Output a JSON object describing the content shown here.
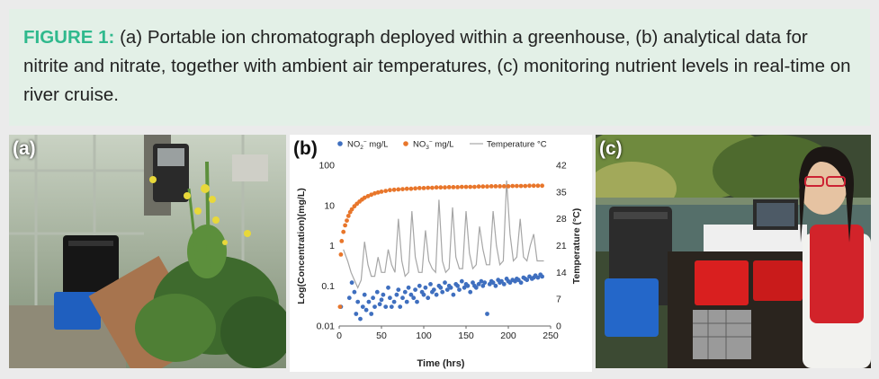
{
  "caption": {
    "label": "FIGURE 1:",
    "text": "(a) Portable ion chromatograph deployed within a greenhouse, (b) analytical data for nitrite and nitrate, together with ambient air temperatures, (c) monitoring nutrient levels in real-time on river cruise."
  },
  "panels": {
    "a_label": "(a)",
    "b_label": "(b)",
    "c_label": "(c)"
  },
  "colors": {
    "nitrite": "#3f6fbf",
    "nitrate": "#e8762b",
    "temperature": "#a6a6a6",
    "caption_label": "#2fb98d"
  },
  "chart_data": {
    "type": "scatter",
    "legend_placement": "top",
    "grid": false,
    "xlabel": "Time (hrs)",
    "ylabel": "Log(Concentration)(mg/L)",
    "y2label": "Temperature (°C)",
    "xlim": [
      0,
      250
    ],
    "ylim": [
      0.01,
      100
    ],
    "y_scale": "log",
    "y2lim": [
      0,
      42
    ],
    "x_ticks": [
      "0",
      "50",
      "100",
      "150",
      "200",
      "250"
    ],
    "y_ticks": [
      "0.01",
      "0.1",
      "1",
      "10",
      "100"
    ],
    "y2_ticks": [
      "0",
      "7",
      "14",
      "21",
      "28",
      "35",
      "42"
    ],
    "legend": {
      "nitrite_base": "NO",
      "nitrite_sub": "2",
      "nitrite_sup": "−",
      "nitrite_unit": " mg/L",
      "nitrate_base": "NO",
      "nitrate_sub": "3",
      "nitrate_sup": "−",
      "nitrate_unit": " mg/L",
      "temperature": "Temperature °C"
    },
    "series": [
      {
        "key": "nitrite",
        "kind": "scatter",
        "axis": "left",
        "x": [
          2,
          12,
          15,
          18,
          20,
          22,
          25,
          28,
          30,
          32,
          35,
          38,
          40,
          42,
          45,
          48,
          50,
          52,
          55,
          58,
          60,
          62,
          65,
          68,
          70,
          72,
          75,
          78,
          80,
          82,
          85,
          88,
          90,
          92,
          95,
          98,
          100,
          102,
          105,
          108,
          110,
          112,
          115,
          118,
          120,
          122,
          125,
          128,
          130,
          132,
          135,
          138,
          140,
          142,
          145,
          148,
          150,
          152,
          155,
          158,
          160,
          162,
          165,
          168,
          170,
          172,
          175,
          178,
          180,
          182,
          185,
          188,
          190,
          192,
          195,
          198,
          200,
          202,
          205,
          208,
          210,
          212,
          215,
          218,
          220,
          222,
          225,
          228,
          230,
          232,
          235,
          238,
          240
        ],
        "y": [
          0.03,
          0.05,
          0.12,
          0.07,
          0.02,
          0.04,
          0.015,
          0.03,
          0.06,
          0.025,
          0.04,
          0.02,
          0.05,
          0.03,
          0.07,
          0.035,
          0.045,
          0.06,
          0.03,
          0.09,
          0.05,
          0.03,
          0.04,
          0.06,
          0.08,
          0.03,
          0.05,
          0.07,
          0.04,
          0.09,
          0.06,
          0.05,
          0.08,
          0.04,
          0.1,
          0.07,
          0.06,
          0.09,
          0.05,
          0.11,
          0.07,
          0.08,
          0.06,
          0.1,
          0.09,
          0.07,
          0.12,
          0.08,
          0.1,
          0.09,
          0.06,
          0.11,
          0.1,
          0.08,
          0.13,
          0.09,
          0.11,
          0.1,
          0.07,
          0.12,
          0.1,
          0.09,
          0.11,
          0.13,
          0.1,
          0.12,
          0.02,
          0.11,
          0.13,
          0.12,
          0.1,
          0.14,
          0.12,
          0.13,
          0.11,
          0.15,
          0.13,
          0.12,
          0.14,
          0.13,
          0.15,
          0.14,
          0.12,
          0.16,
          0.15,
          0.14,
          0.17,
          0.15,
          0.16,
          0.18,
          0.16,
          0.19,
          0.17
        ]
      },
      {
        "key": "nitrate",
        "kind": "scatter",
        "axis": "left",
        "x": [
          1,
          2,
          3,
          5,
          7,
          9,
          11,
          13,
          15,
          18,
          21,
          24,
          27,
          30,
          34,
          38,
          42,
          46,
          50,
          55,
          60,
          65,
          70,
          75,
          80,
          85,
          90,
          95,
          100,
          105,
          110,
          115,
          120,
          125,
          130,
          135,
          140,
          145,
          150,
          155,
          160,
          165,
          170,
          175,
          180,
          185,
          190,
          195,
          200,
          205,
          210,
          215,
          220,
          225,
          230,
          235,
          240
        ],
        "y": [
          0.03,
          0.6,
          1.3,
          2.2,
          3.2,
          4.2,
          5.5,
          6.8,
          8,
          9.5,
          11,
          12.5,
          14,
          15.5,
          17,
          18.5,
          20,
          21,
          22,
          23,
          24,
          24.5,
          25,
          25.5,
          26,
          26,
          26.5,
          27,
          27,
          27.5,
          27.5,
          28,
          28,
          28,
          28.5,
          28.5,
          28.5,
          29,
          29,
          29,
          29,
          29.5,
          29.5,
          29.5,
          30,
          30,
          30,
          30,
          30,
          30.5,
          30.5,
          30.5,
          30.5,
          31,
          31,
          31,
          31
        ]
      },
      {
        "key": "temperature",
        "kind": "line",
        "axis": "right",
        "x": [
          5,
          10,
          14,
          18,
          22,
          26,
          30,
          34,
          38,
          42,
          46,
          50,
          54,
          58,
          62,
          66,
          70,
          74,
          78,
          82,
          86,
          90,
          94,
          98,
          102,
          106,
          110,
          114,
          118,
          122,
          126,
          130,
          134,
          138,
          142,
          146,
          150,
          154,
          158,
          162,
          166,
          170,
          174,
          178,
          182,
          186,
          190,
          194,
          198,
          202,
          206,
          210,
          214,
          218,
          222,
          226,
          230,
          234,
          238,
          242
        ],
        "y": [
          20,
          17,
          14,
          12,
          10,
          12,
          22,
          16,
          13,
          13,
          18,
          14,
          14,
          20,
          16,
          14,
          28,
          17,
          13,
          14,
          30,
          18,
          14,
          14,
          25,
          17,
          15,
          14,
          33,
          17,
          14,
          15,
          31,
          18,
          15,
          15,
          30,
          19,
          15,
          16,
          26,
          20,
          16,
          16,
          30,
          21,
          16,
          17,
          38,
          24,
          17,
          18,
          28,
          18,
          17,
          21,
          24,
          17,
          17,
          17
        ]
      }
    ]
  }
}
